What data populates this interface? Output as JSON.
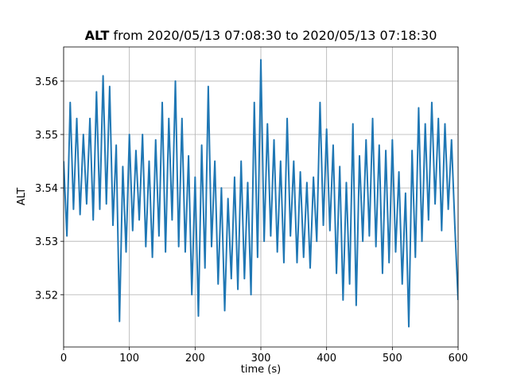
{
  "chart_data": {
    "type": "line",
    "title": {
      "variable": "ALT",
      "text": "from 2020/05/13 07:08:30 to 2020/05/13 07:18:30"
    },
    "xlabel": "time (s)",
    "ylabel": "ALT",
    "xlim": [
      0,
      600
    ],
    "xticks": [
      0,
      100,
      200,
      300,
      400,
      500,
      600
    ],
    "ylim": [
      3.5102,
      3.5664
    ],
    "yticks": [
      3.52,
      3.53,
      3.54,
      3.55,
      3.56
    ],
    "grid": true,
    "series": [
      {
        "name": "ALT",
        "color": "#1f77b4",
        "x": [
          0,
          5,
          10,
          15,
          20,
          25,
          30,
          35,
          40,
          45,
          50,
          55,
          60,
          65,
          70,
          75,
          80,
          85,
          90,
          95,
          100,
          105,
          110,
          115,
          120,
          125,
          130,
          135,
          140,
          145,
          150,
          155,
          160,
          165,
          170,
          175,
          180,
          185,
          190,
          195,
          200,
          205,
          210,
          215,
          220,
          225,
          230,
          235,
          240,
          245,
          250,
          255,
          260,
          265,
          270,
          275,
          280,
          285,
          290,
          295,
          300,
          305,
          310,
          315,
          320,
          325,
          330,
          335,
          340,
          345,
          350,
          355,
          360,
          365,
          370,
          375,
          380,
          385,
          390,
          395,
          400,
          405,
          410,
          415,
          420,
          425,
          430,
          435,
          440,
          445,
          450,
          455,
          460,
          465,
          470,
          475,
          480,
          485,
          490,
          495,
          500,
          505,
          510,
          515,
          520,
          525,
          530,
          535,
          540,
          545,
          550,
          555,
          560,
          565,
          570,
          575,
          580,
          585,
          590,
          595,
          600
        ],
        "values": [
          3.545,
          3.531,
          3.556,
          3.536,
          3.553,
          3.535,
          3.55,
          3.537,
          3.553,
          3.534,
          3.558,
          3.536,
          3.561,
          3.537,
          3.559,
          3.533,
          3.548,
          3.515,
          3.544,
          3.528,
          3.55,
          3.532,
          3.547,
          3.534,
          3.55,
          3.529,
          3.545,
          3.527,
          3.549,
          3.531,
          3.556,
          3.528,
          3.553,
          3.534,
          3.56,
          3.529,
          3.553,
          3.528,
          3.546,
          3.52,
          3.542,
          3.516,
          3.548,
          3.525,
          3.559,
          3.529,
          3.545,
          3.522,
          3.54,
          3.517,
          3.538,
          3.523,
          3.542,
          3.521,
          3.545,
          3.523,
          3.541,
          3.52,
          3.556,
          3.527,
          3.564,
          3.53,
          3.552,
          3.531,
          3.549,
          3.528,
          3.545,
          3.526,
          3.553,
          3.531,
          3.545,
          3.526,
          3.543,
          3.527,
          3.541,
          3.525,
          3.542,
          3.53,
          3.556,
          3.533,
          3.551,
          3.532,
          3.548,
          3.524,
          3.544,
          3.519,
          3.541,
          3.522,
          3.552,
          3.518,
          3.546,
          3.53,
          3.549,
          3.531,
          3.553,
          3.529,
          3.548,
          3.524,
          3.547,
          3.526,
          3.549,
          3.528,
          3.543,
          3.522,
          3.539,
          3.514,
          3.547,
          3.527,
          3.555,
          3.53,
          3.552,
          3.534,
          3.556,
          3.537,
          3.553,
          3.532,
          3.552,
          3.536,
          3.549,
          3.533,
          3.519
        ]
      }
    ]
  }
}
